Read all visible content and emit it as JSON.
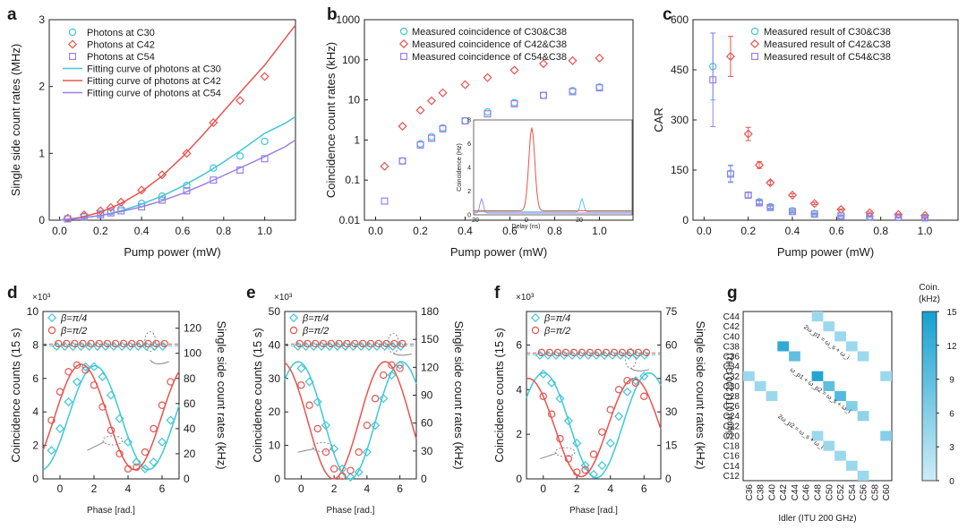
{
  "chart_data": [
    {
      "panel": "a",
      "type": "scatter",
      "xlabel": "Pump power (mW)",
      "ylabel": "Single side count rates (MHz)",
      "xlim": [
        -0.05,
        1.15
      ],
      "ylim": [
        0,
        3
      ],
      "xticks": [
        "0.0",
        "0.2",
        "0.4",
        "0.6",
        "0.8",
        "1.0"
      ],
      "yticks": [
        "0",
        "1",
        "2",
        "3"
      ],
      "legend_position": "top-left",
      "series": [
        {
          "name": "Photons at C30",
          "marker": "circle",
          "color": "#3ec8d6",
          "x": [
            0.04,
            0.12,
            0.2,
            0.25,
            0.3,
            0.4,
            0.5,
            0.62,
            0.75,
            0.88,
            1.0
          ],
          "y": [
            0.02,
            0.06,
            0.1,
            0.13,
            0.17,
            0.25,
            0.36,
            0.52,
            0.78,
            0.96,
            1.18
          ]
        },
        {
          "name": "Photons at C42",
          "marker": "diamond",
          "color": "#e8534f",
          "x": [
            0.04,
            0.12,
            0.2,
            0.25,
            0.3,
            0.4,
            0.5,
            0.62,
            0.75,
            0.88,
            1.0
          ],
          "y": [
            0.03,
            0.08,
            0.14,
            0.19,
            0.27,
            0.45,
            0.68,
            1.0,
            1.46,
            1.79,
            2.15
          ]
        },
        {
          "name": "Photons at C54",
          "marker": "square",
          "color": "#9b7fe6",
          "x": [
            0.04,
            0.12,
            0.2,
            0.25,
            0.3,
            0.4,
            0.5,
            0.62,
            0.75,
            0.88,
            1.0
          ],
          "y": [
            0.02,
            0.05,
            0.08,
            0.11,
            0.14,
            0.2,
            0.3,
            0.44,
            0.6,
            0.75,
            0.92
          ]
        },
        {
          "name": "Fitting curve of photons at C30",
          "type": "line",
          "color": "#3ec8d6",
          "x": [
            0.0,
            0.1,
            0.2,
            0.3,
            0.4,
            0.5,
            0.6,
            0.7,
            0.8,
            0.9,
            1.0,
            1.1,
            1.15
          ],
          "y": [
            0.0,
            0.03,
            0.07,
            0.14,
            0.24,
            0.36,
            0.51,
            0.68,
            0.87,
            1.08,
            1.3,
            1.45,
            1.55
          ]
        },
        {
          "name": "Fitting curve of photons at C42",
          "type": "line",
          "color": "#e8534f",
          "x": [
            0.0,
            0.1,
            0.2,
            0.3,
            0.4,
            0.5,
            0.6,
            0.7,
            0.8,
            0.9,
            1.0,
            1.1,
            1.15
          ],
          "y": [
            0.0,
            0.04,
            0.12,
            0.25,
            0.43,
            0.66,
            0.95,
            1.28,
            1.63,
            1.98,
            2.32,
            2.72,
            2.92
          ]
        },
        {
          "name": "Fitting curve of photons at C54",
          "type": "line",
          "color": "#9b7fe6",
          "x": [
            0.0,
            0.1,
            0.2,
            0.3,
            0.4,
            0.5,
            0.6,
            0.7,
            0.8,
            0.9,
            1.0,
            1.1,
            1.15
          ],
          "y": [
            0.0,
            0.03,
            0.07,
            0.13,
            0.2,
            0.29,
            0.4,
            0.53,
            0.67,
            0.81,
            0.95,
            1.1,
            1.2
          ]
        }
      ]
    },
    {
      "panel": "b",
      "type": "scatter",
      "xlabel": "Pump power (mW)",
      "ylabel": "Coincidence count rates (kHz)",
      "yscale": "log",
      "xlim": [
        -0.05,
        1.15
      ],
      "ylim": [
        0.01,
        1000
      ],
      "xticks": [
        "0.0",
        "0.2",
        "0.4",
        "0.6",
        "0.8",
        "1.0"
      ],
      "yticks": [
        "0.01",
        "0.1",
        "1",
        "10",
        "100",
        "1000"
      ],
      "legend_position": "top-right",
      "series": [
        {
          "name": "Measured coincidence of C30&C38",
          "marker": "circle",
          "color": "#3ec8d6",
          "x": [
            0.12,
            0.2,
            0.25,
            0.3,
            0.4,
            0.5,
            0.62,
            0.75,
            0.88,
            1.0
          ],
          "y": [
            0.3,
            0.8,
            1.2,
            2.0,
            3.0,
            5.0,
            8.5,
            13.0,
            17.0,
            21.0
          ]
        },
        {
          "name": "Measured coincidence of C42&C38",
          "marker": "diamond",
          "color": "#e8534f",
          "x": [
            0.04,
            0.12,
            0.2,
            0.25,
            0.3,
            0.4,
            0.5,
            0.62,
            0.75,
            0.88,
            1.0
          ],
          "y": [
            0.22,
            2.2,
            5.5,
            9.5,
            15.0,
            24.0,
            36.0,
            55.0,
            80.0,
            95.0,
            110.0
          ]
        },
        {
          "name": "Measured coincidence of C54&C38",
          "marker": "square",
          "color": "#9b7fe6",
          "x": [
            0.04,
            0.12,
            0.2,
            0.25,
            0.3,
            0.4,
            0.5,
            0.62,
            0.75,
            0.88,
            1.0
          ],
          "y": [
            0.03,
            0.3,
            0.75,
            1.1,
            1.9,
            3.0,
            4.5,
            8.0,
            13.0,
            16.0,
            20.0
          ]
        }
      ],
      "inset": {
        "xlabel": "Delay (ns)",
        "ylabel": "Coincidence (Hz)",
        "xticks": [
          "−20",
          "0",
          "20"
        ],
        "yticks": [
          "0",
          "2",
          "4",
          "6",
          "8"
        ],
        "xlim": [
          -20,
          40
        ],
        "ylim": [
          0,
          8
        ]
      }
    },
    {
      "panel": "c",
      "type": "scatter",
      "xlabel": "Pump power (mW)",
      "ylabel": "CAR",
      "xlim": [
        -0.05,
        1.15
      ],
      "ylim": [
        0,
        600
      ],
      "xticks": [
        "0.0",
        "0.2",
        "0.4",
        "0.6",
        "0.8",
        "1.0"
      ],
      "yticks": [
        "0",
        "150",
        "300",
        "450",
        "600"
      ],
      "legend_position": "top-right",
      "series": [
        {
          "name": "Measured result of C30&C38",
          "marker": "circle",
          "color": "#3ec8d6",
          "x": [
            0.04,
            0.12,
            0.2,
            0.25,
            0.3,
            0.4,
            0.5,
            0.62,
            0.75,
            0.88,
            1.0
          ],
          "y": [
            460,
            140,
            75,
            55,
            40,
            28,
            20,
            14,
            11,
            9,
            8
          ],
          "err": [
            100,
            25,
            8,
            6,
            4,
            3,
            2,
            2,
            2,
            1,
            1
          ]
        },
        {
          "name": "Measured result of C42&C38",
          "marker": "diamond",
          "color": "#e8534f",
          "x": [
            0.12,
            0.2,
            0.25,
            0.3,
            0.4,
            0.5,
            0.62,
            0.75,
            0.88,
            1.0
          ],
          "y": [
            490,
            258,
            165,
            112,
            75,
            50,
            32,
            22,
            17,
            14
          ],
          "err": [
            60,
            20,
            10,
            6,
            4,
            3,
            2,
            2,
            2,
            1
          ]
        },
        {
          "name": "Measured result of C54&C38",
          "marker": "square",
          "color": "#9b7fe6",
          "x": [
            0.04,
            0.12,
            0.2,
            0.25,
            0.3,
            0.4,
            0.5,
            0.62,
            0.75,
            0.88,
            1.0
          ],
          "y": [
            420,
            138,
            75,
            52,
            38,
            26,
            18,
            13,
            10,
            8,
            7
          ],
          "err": [
            140,
            25,
            8,
            6,
            4,
            3,
            2,
            2,
            1,
            1,
            1
          ]
        }
      ]
    },
    {
      "panel": "d",
      "type": "scatter",
      "xlabel": "Phase [rad.]",
      "ylabel": "Coincidence counts (15 s)",
      "ylabel_right": "Single side count rates (kHz)",
      "multiplier": "×10³",
      "xlim": [
        -1,
        7
      ],
      "ylim": [
        0,
        10
      ],
      "ylim_right": [
        0,
        133.3
      ],
      "xticks": [
        "0",
        "2",
        "4",
        "6"
      ],
      "yticks": [
        "0",
        "2",
        "4",
        "6",
        "8",
        "10"
      ],
      "yticks_right": [
        "0",
        "20",
        "40",
        "60",
        "80",
        "100",
        "120"
      ],
      "legend_position": "top-left",
      "series": [
        {
          "name": "β=π/4",
          "marker": "diamond",
          "color": "#3ec8d6",
          "x": [
            -0.5,
            0,
            0.5,
            1,
            1.5,
            2,
            2.5,
            3,
            3.5,
            4,
            4.5,
            5,
            5.5,
            6,
            6.5
          ],
          "y": [
            1.7,
            3.0,
            4.6,
            5.8,
            6.7,
            6.7,
            6.1,
            5.0,
            3.6,
            2.2,
            1.0,
            0.6,
            1.0,
            2.2,
            3.5
          ]
        },
        {
          "name": "β=π/2",
          "marker": "circle",
          "color": "#e8534f",
          "x": [
            -0.5,
            0,
            0.5,
            1,
            1.5,
            2,
            2.5,
            3,
            3.5,
            4,
            4.5,
            5,
            5.5,
            6,
            6.5
          ],
          "y": [
            3.5,
            5.2,
            6.4,
            6.8,
            6.5,
            5.6,
            4.3,
            2.9,
            1.5,
            0.6,
            0.7,
            1.6,
            3.0,
            4.4,
            5.8
          ]
        }
      ],
      "singles_level": 8.0
    },
    {
      "panel": "e",
      "type": "scatter",
      "xlabel": "Phase [rad.]",
      "ylabel": "Coincidence counts (15 s)",
      "ylabel_right": "Single side count rates (kHz)",
      "multiplier": "×10³",
      "xlim": [
        -1,
        7
      ],
      "ylim": [
        0,
        50
      ],
      "ylim_right": [
        0,
        180
      ],
      "xticks": [
        "0",
        "2",
        "4",
        "6"
      ],
      "yticks": [
        "0",
        "10",
        "20",
        "30",
        "40",
        "50"
      ],
      "yticks_right": [
        "0",
        "30",
        "60",
        "90",
        "120",
        "150",
        "180"
      ],
      "legend_position": "top-left",
      "series": [
        {
          "name": "β=π/4",
          "marker": "diamond",
          "color": "#3ec8d6",
          "x": [
            0,
            0.5,
            1,
            1.5,
            2,
            2.5,
            3,
            3.5,
            4,
            4.5,
            5,
            5.5,
            6
          ],
          "y": [
            33,
            29,
            23,
            16,
            9,
            3,
            0.5,
            2,
            8,
            16,
            24,
            31,
            34
          ]
        },
        {
          "name": "β=π/2",
          "marker": "circle",
          "color": "#e8534f",
          "x": [
            0,
            0.5,
            1,
            1.5,
            2,
            2.5,
            3,
            3.5,
            4,
            4.5,
            5,
            5.5,
            6
          ],
          "y": [
            28,
            22,
            15,
            8,
            3,
            0.8,
            2.5,
            8,
            16,
            24,
            31,
            34,
            33
          ]
        }
      ],
      "singles_level": 40.0
    },
    {
      "panel": "f",
      "type": "scatter",
      "xlabel": "Phase [rad.]",
      "ylabel": "Coincidence counts (15 s)",
      "ylabel_right": "Single side count rates (kHz)",
      "multiplier": "×10³",
      "xlim": [
        -1,
        7
      ],
      "ylim": [
        0,
        7.5
      ],
      "ylim_right": [
        0,
        75
      ],
      "xticks": [
        "0",
        "2",
        "4",
        "6"
      ],
      "yticks": [
        "0",
        "2",
        "4",
        "6"
      ],
      "yticks_right": [
        "0",
        "15",
        "30",
        "45",
        "60",
        "75"
      ],
      "legend_position": "top-left",
      "series": [
        {
          "name": "β=π/4",
          "marker": "diamond",
          "color": "#3ec8d6",
          "x": [
            0,
            0.5,
            1,
            1.5,
            2,
            2.5,
            3,
            3.5,
            4,
            4.5,
            5,
            5.5,
            6
          ],
          "y": [
            4.7,
            4.3,
            3.6,
            2.6,
            1.6,
            0.6,
            0.2,
            0.6,
            1.6,
            2.8,
            3.9,
            4.4,
            4.6
          ]
        },
        {
          "name": "β=π/2",
          "marker": "circle",
          "color": "#e8534f",
          "x": [
            0,
            0.5,
            1,
            1.5,
            2,
            2.5,
            3,
            3.5,
            4,
            4.5,
            5,
            5.5,
            6
          ],
          "y": [
            3.7,
            2.9,
            1.8,
            0.9,
            0.3,
            0.4,
            1.1,
            2.1,
            3.1,
            4.0,
            4.4,
            4.3,
            3.7
          ]
        }
      ],
      "singles_level": 5.6
    },
    {
      "panel": "g",
      "type": "heatmap",
      "xlabel": "Idler (ITU 200 GHz)",
      "ylabel": "Signal (ITU 200 GHz)",
      "x_categories": [
        "C36",
        "C38",
        "C40",
        "C42",
        "C44",
        "C46",
        "C48",
        "C50",
        "C52",
        "C54",
        "C56",
        "C58",
        "C60"
      ],
      "y_categories": [
        "C44",
        "C42",
        "C40",
        "C38",
        "C36",
        "C34",
        "C32",
        "C30",
        "C28",
        "C26",
        "C24",
        "C22",
        "C20",
        "C18",
        "C16",
        "C14",
        "C12"
      ],
      "colorbar_title": "Coin. (kHz)",
      "colorbar_ticks": [
        "0",
        "3",
        "6",
        "9",
        "12",
        "15"
      ],
      "vmin": 0,
      "vmax": 15,
      "annotations": [
        "2ω_p1 = ω_s + ω_i",
        "ω_p1 + ω_p2 = ω_s + ω_i",
        "2ω_p2 = ω_s + ω_i"
      ],
      "cells": [
        {
          "x": "C48",
          "y": "C44",
          "v": 4
        },
        {
          "x": "C50",
          "y": "C42",
          "v": 4
        },
        {
          "x": "C52",
          "y": "C40",
          "v": 4
        },
        {
          "x": "C42",
          "y": "C38",
          "v": 13
        },
        {
          "x": "C44",
          "y": "C36",
          "v": 9
        },
        {
          "x": "C54",
          "y": "C38",
          "v": 4
        },
        {
          "x": "C56",
          "y": "C36",
          "v": 4
        },
        {
          "x": "C36",
          "y": "C32",
          "v": 4
        },
        {
          "x": "C38",
          "y": "C30",
          "v": 4
        },
        {
          "x": "C48",
          "y": "C32",
          "v": 14
        },
        {
          "x": "C50",
          "y": "C30",
          "v": 9
        },
        {
          "x": "C52",
          "y": "C28",
          "v": 10
        },
        {
          "x": "C54",
          "y": "C26",
          "v": 6
        },
        {
          "x": "C56",
          "y": "C24",
          "v": 5
        },
        {
          "x": "C40",
          "y": "C28",
          "v": 4
        },
        {
          "x": "C60",
          "y": "C32",
          "v": 4
        },
        {
          "x": "C60",
          "y": "C20",
          "v": 6
        },
        {
          "x": "C48",
          "y": "C20",
          "v": 4
        },
        {
          "x": "C50",
          "y": "C18",
          "v": 4
        },
        {
          "x": "C52",
          "y": "C16",
          "v": 4
        },
        {
          "x": "C54",
          "y": "C14",
          "v": 4
        },
        {
          "x": "C56",
          "y": "C12",
          "v": 4
        }
      ]
    }
  ]
}
